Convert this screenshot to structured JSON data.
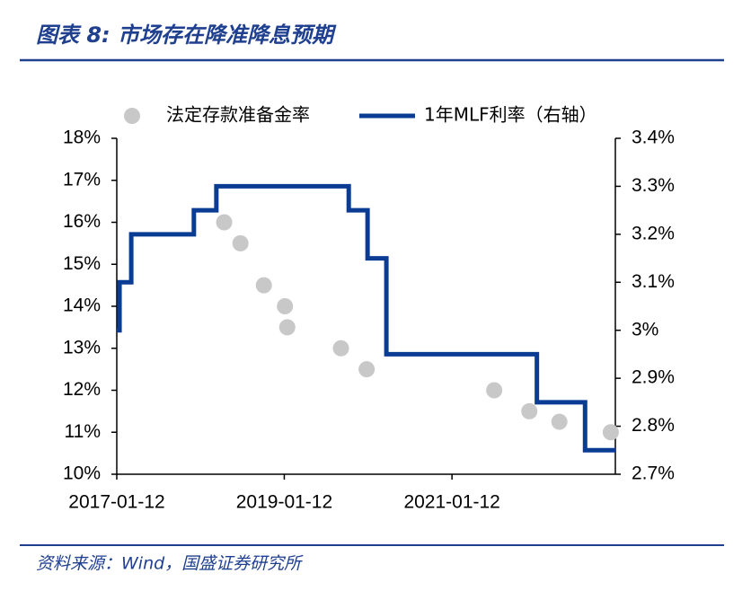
{
  "header": {
    "title": "图表 8: 市场存在降准降息预期"
  },
  "source": "资料来源：Wind，国盛证券研究所",
  "chart_data": {
    "type": "combo",
    "legend": "top",
    "xlim": [
      "2017-01-12",
      "2022-12-25"
    ],
    "xticks": [
      "2017-01-12",
      "2019-01-12",
      "2021-01-12"
    ],
    "ylim": [
      10,
      18
    ],
    "yticks": [
      {
        "value": 10,
        "label": "10%"
      },
      {
        "value": 11,
        "label": "11%"
      },
      {
        "value": 12,
        "label": "12%"
      },
      {
        "value": 13,
        "label": "13%"
      },
      {
        "value": 14,
        "label": "14%"
      },
      {
        "value": 15,
        "label": "15%"
      },
      {
        "value": 16,
        "label": "16%"
      },
      {
        "value": 17,
        "label": "17%"
      },
      {
        "value": 18,
        "label": "18%"
      }
    ],
    "y2lim": [
      2.7,
      3.4
    ],
    "y2ticks": [
      {
        "value": 2.7,
        "label": "2.7%"
      },
      {
        "value": 2.8,
        "label": "2.8%"
      },
      {
        "value": 2.9,
        "label": "2.9%"
      },
      {
        "value": 3,
        "label": "3%"
      },
      {
        "value": 3.1,
        "label": "3.1%"
      },
      {
        "value": 3.2,
        "label": "3.2%"
      },
      {
        "value": 3.3,
        "label": "3.3%"
      },
      {
        "value": 3.4,
        "label": "3.4%"
      }
    ],
    "series": [
      {
        "name": "法定存款准备金率",
        "type": "scatter",
        "color": "#c8c8c8",
        "axis": "y",
        "x": [
          "2018-04-25",
          "2018-07-05",
          "2018-10-15",
          "2019-01-15",
          "2019-01-25",
          "2019-09-16",
          "2020-01-06",
          "2021-07-15",
          "2021-12-15",
          "2022-04-25",
          "2022-12-05"
        ],
        "values": [
          16,
          15.5,
          14.5,
          14,
          13.5,
          13,
          12.5,
          12,
          11.5,
          11.25,
          11
        ]
      },
      {
        "name": "1年MLF利率（右轴）",
        "type": "line",
        "step": "post",
        "color": "#0b3c93",
        "axis": "y2",
        "x": [
          "2017-01-12",
          "2017-01-24",
          "2017-03-16",
          "2017-12-14",
          "2018-03-22",
          "2019-10-20",
          "2020-01-10",
          "2020-04-01",
          "2022-01-17",
          "2022-08-15",
          "2022-12-25"
        ],
        "values": [
          3.0,
          3.1,
          3.2,
          3.25,
          3.3,
          3.25,
          3.15,
          2.95,
          2.85,
          2.75,
          2.75
        ]
      }
    ]
  }
}
